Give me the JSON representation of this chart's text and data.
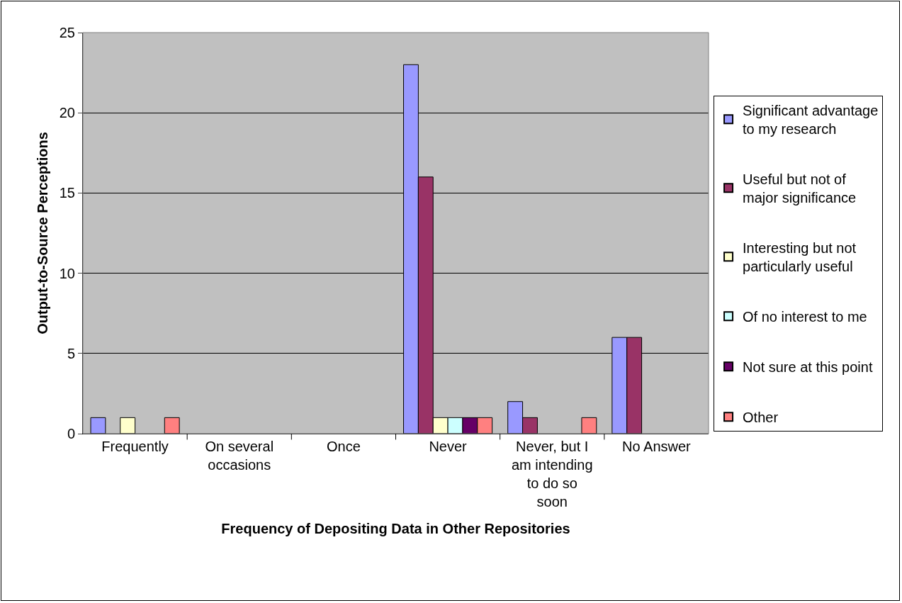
{
  "chart_data": {
    "type": "bar",
    "xlabel": "Frequency of Depositing Data in Other Repositories",
    "ylabel": "Output-to-Source Perceptions",
    "categories": [
      "Frequently",
      "On several occasions",
      "Once",
      "Never",
      "Never, but I am intending to do so soon",
      "No Answer"
    ],
    "series": [
      {
        "name": "Significant advantage to my research",
        "color": "#9999ff",
        "values": [
          1,
          0,
          0,
          23,
          2,
          6
        ]
      },
      {
        "name": "Useful but not of major significance",
        "color": "#993366",
        "values": [
          0,
          0,
          0,
          16,
          1,
          6
        ]
      },
      {
        "name": "Interesting but not particularly useful",
        "color": "#ffffcc",
        "values": [
          1,
          0,
          0,
          1,
          0,
          0
        ]
      },
      {
        "name": "Of no interest to me",
        "color": "#ccffff",
        "values": [
          0,
          0,
          0,
          1,
          0,
          0
        ]
      },
      {
        "name": "Not sure at this point",
        "color": "#660066",
        "values": [
          0,
          0,
          0,
          1,
          0,
          0
        ]
      },
      {
        "name": "Other",
        "color": "#ff8080",
        "values": [
          1,
          0,
          0,
          1,
          1,
          0
        ]
      }
    ],
    "ylim": [
      0,
      25
    ],
    "yticks": [
      0,
      5,
      10,
      15,
      20,
      25
    ],
    "grid": "y",
    "legend": "right"
  }
}
